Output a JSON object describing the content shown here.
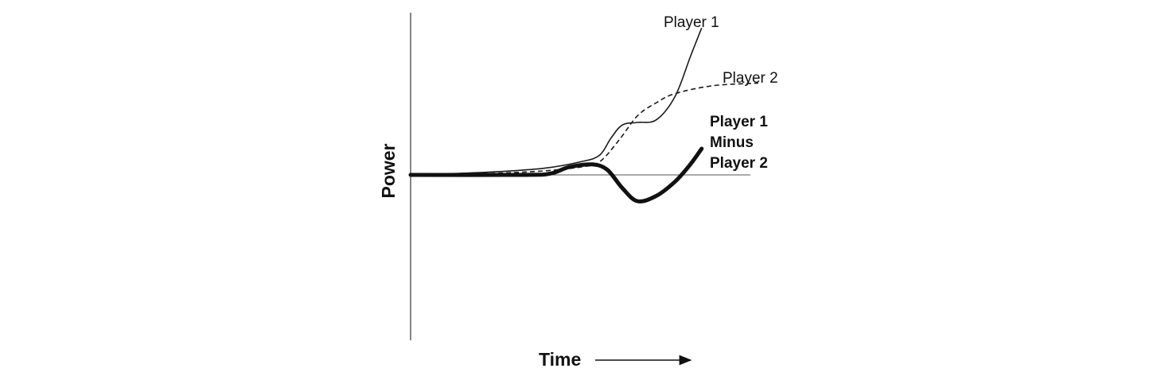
{
  "chart_data": {
    "type": "line",
    "title": "",
    "xlabel": "Time",
    "ylabel": "Power",
    "grid": false,
    "legend": "inline labels at line ends",
    "zero_line": true,
    "series": [
      {
        "name": "Player 1",
        "style": "solid-thin",
        "color": "#1a1a1a",
        "points": [
          [
            0,
            0
          ],
          [
            0.2,
            0.02
          ],
          [
            0.35,
            0.05
          ],
          [
            0.45,
            0.1
          ],
          [
            0.5,
            0.15
          ],
          [
            0.53,
            0.28
          ],
          [
            0.56,
            0.38
          ],
          [
            0.6,
            0.4
          ],
          [
            0.65,
            0.42
          ],
          [
            0.7,
            0.6
          ],
          [
            0.74,
            0.9
          ],
          [
            0.77,
            1.12
          ]
        ]
      },
      {
        "name": "Player 2",
        "style": "dashed",
        "color": "#1a1a1a",
        "points": [
          [
            0,
            0
          ],
          [
            0.2,
            0.01
          ],
          [
            0.35,
            0.03
          ],
          [
            0.45,
            0.06
          ],
          [
            0.5,
            0.1
          ],
          [
            0.55,
            0.26
          ],
          [
            0.6,
            0.45
          ],
          [
            0.65,
            0.55
          ],
          [
            0.7,
            0.62
          ],
          [
            0.8,
            0.68
          ],
          [
            0.92,
            0.7
          ]
        ]
      },
      {
        "name": "Player 1 Minus Player 2",
        "style": "solid-thick",
        "color": "#111111",
        "points": [
          [
            0,
            0
          ],
          [
            0.3,
            0
          ],
          [
            0.37,
            0.01
          ],
          [
            0.42,
            0.06
          ],
          [
            0.48,
            0.08
          ],
          [
            0.52,
            0.04
          ],
          [
            0.56,
            -0.1
          ],
          [
            0.6,
            -0.2
          ],
          [
            0.65,
            -0.16
          ],
          [
            0.7,
            -0.05
          ],
          [
            0.74,
            0.08
          ],
          [
            0.77,
            0.2
          ]
        ]
      }
    ],
    "labels": {
      "player1": "Player 1",
      "player2": "Player 2",
      "diff": [
        "Player 1",
        "Minus",
        "Player 2"
      ]
    }
  }
}
